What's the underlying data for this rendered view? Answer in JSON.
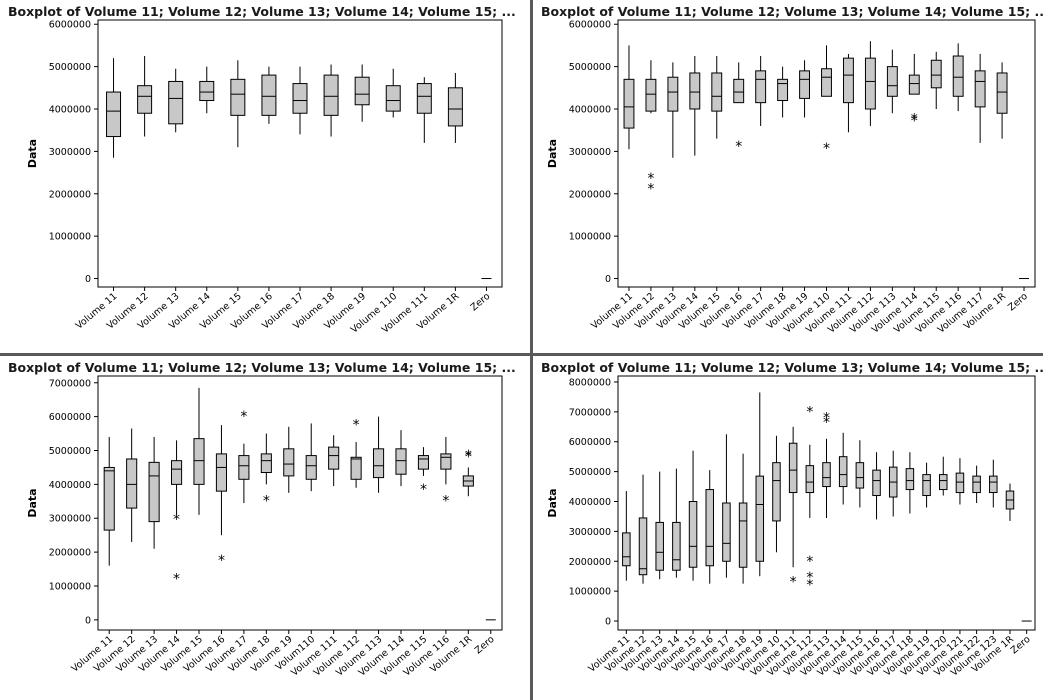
{
  "chart_data": [
    {
      "type": "boxplot",
      "title": "Boxplot of Volume 11; Volume 12; Volume 13; Volume 14; Volume 15; ...",
      "ylabel": "Data",
      "ylim": [
        -200000,
        6100000
      ],
      "yticks": [
        0,
        1000000,
        2000000,
        3000000,
        4000000,
        5000000,
        6000000
      ],
      "ytick_labels": [
        "0",
        "1000000",
        "2000000",
        "3000000",
        "4000000",
        "5000000",
        "6000000"
      ],
      "categories": [
        "Volume 11",
        "Volume 12",
        "Volume 13",
        "Volume 14",
        "Volume 15",
        "Volume 16",
        "Volume 17",
        "Volume 18",
        "Volume 19",
        "Volume 110",
        "Volume 111",
        "Volume 1R",
        "Zero"
      ],
      "boxes": [
        {
          "min": 2850000,
          "q1": 3350000,
          "median": 3950000,
          "q3": 4400000,
          "max": 5200000,
          "outliers": []
        },
        {
          "min": 3350000,
          "q1": 3900000,
          "median": 4300000,
          "q3": 4550000,
          "max": 5250000,
          "outliers": []
        },
        {
          "min": 3450000,
          "q1": 3650000,
          "median": 4250000,
          "q3": 4650000,
          "max": 4950000,
          "outliers": []
        },
        {
          "min": 3900000,
          "q1": 4200000,
          "median": 4400000,
          "q3": 4650000,
          "max": 5000000,
          "outliers": []
        },
        {
          "min": 3100000,
          "q1": 3850000,
          "median": 4350000,
          "q3": 4700000,
          "max": 5150000,
          "outliers": []
        },
        {
          "min": 3650000,
          "q1": 3850000,
          "median": 4300000,
          "q3": 4800000,
          "max": 5000000,
          "outliers": []
        },
        {
          "min": 3400000,
          "q1": 3900000,
          "median": 4200000,
          "q3": 4600000,
          "max": 5000000,
          "outliers": []
        },
        {
          "min": 3350000,
          "q1": 3850000,
          "median": 4300000,
          "q3": 4800000,
          "max": 5050000,
          "outliers": []
        },
        {
          "min": 3700000,
          "q1": 4100000,
          "median": 4350000,
          "q3": 4750000,
          "max": 5050000,
          "outliers": []
        },
        {
          "min": 3800000,
          "q1": 3950000,
          "median": 4200000,
          "q3": 4550000,
          "max": 4950000,
          "outliers": []
        },
        {
          "min": 3200000,
          "q1": 3900000,
          "median": 4300000,
          "q3": 4600000,
          "max": 4750000,
          "outliers": []
        },
        {
          "min": 3200000,
          "q1": 3600000,
          "median": 4000000,
          "q3": 4500000,
          "max": 4850000,
          "outliers": []
        },
        {
          "min": 0,
          "q1": 0,
          "median": 0,
          "q3": 0,
          "max": 0,
          "outliers": []
        }
      ]
    },
    {
      "type": "boxplot",
      "title": "Boxplot of Volume 11; Volume 12; Volume 13; Volume 14; Volume 15; ...",
      "ylabel": "Data",
      "ylim": [
        -200000,
        6100000
      ],
      "yticks": [
        0,
        1000000,
        2000000,
        3000000,
        4000000,
        5000000,
        6000000
      ],
      "ytick_labels": [
        "0",
        "1000000",
        "2000000",
        "3000000",
        "4000000",
        "5000000",
        "6000000"
      ],
      "categories": [
        "Volume 11",
        "Volume 12",
        "Volume 13",
        "Volume 14",
        "Volume 15",
        "Volume 16",
        "Volume 17",
        "Volume 18",
        "Volume 19",
        "Volume 110",
        "Volume 111",
        "Volume 112",
        "Volume 113",
        "Volume 114",
        "Volume 115",
        "Volume 116",
        "Volume 117",
        "Volume 1R",
        "Zero"
      ],
      "boxes": [
        {
          "min": 3050000,
          "q1": 3550000,
          "median": 4050000,
          "q3": 4700000,
          "max": 5500000,
          "outliers": []
        },
        {
          "min": 3900000,
          "q1": 3950000,
          "median": 4350000,
          "q3": 4700000,
          "max": 5150000,
          "outliers": [
            2400000,
            2150000
          ]
        },
        {
          "min": 2850000,
          "q1": 3950000,
          "median": 4400000,
          "q3": 4750000,
          "max": 5100000,
          "outliers": []
        },
        {
          "min": 2900000,
          "q1": 4000000,
          "median": 4400000,
          "q3": 4850000,
          "max": 5250000,
          "outliers": []
        },
        {
          "min": 3300000,
          "q1": 3950000,
          "median": 4300000,
          "q3": 4850000,
          "max": 5250000,
          "outliers": []
        },
        {
          "min": 4150000,
          "q1": 4150000,
          "median": 4400000,
          "q3": 4700000,
          "max": 5100000,
          "outliers": [
            3150000
          ]
        },
        {
          "min": 3600000,
          "q1": 4150000,
          "median": 4700000,
          "q3": 4900000,
          "max": 5250000,
          "outliers": []
        },
        {
          "min": 3800000,
          "q1": 4200000,
          "median": 4600000,
          "q3": 4700000,
          "max": 5000000,
          "outliers": []
        },
        {
          "min": 3800000,
          "q1": 4250000,
          "median": 4700000,
          "q3": 4900000,
          "max": 5150000,
          "outliers": []
        },
        {
          "min": 4300000,
          "q1": 4300000,
          "median": 4750000,
          "q3": 4950000,
          "max": 5500000,
          "outliers": [
            3100000
          ]
        },
        {
          "min": 3450000,
          "q1": 4150000,
          "median": 4800000,
          "q3": 5200000,
          "max": 5300000,
          "outliers": []
        },
        {
          "min": 3600000,
          "q1": 4000000,
          "median": 4650000,
          "q3": 5200000,
          "max": 5600000,
          "outliers": []
        },
        {
          "min": 3900000,
          "q1": 4300000,
          "median": 4550000,
          "q3": 5000000,
          "max": 5400000,
          "outliers": []
        },
        {
          "min": 4350000,
          "q1": 4350000,
          "median": 4600000,
          "q3": 4800000,
          "max": 5300000,
          "outliers": [
            3800000,
            3750000
          ]
        },
        {
          "min": 4000000,
          "q1": 4500000,
          "median": 4800000,
          "q3": 5150000,
          "max": 5350000,
          "outliers": []
        },
        {
          "min": 3950000,
          "q1": 4300000,
          "median": 4750000,
          "q3": 5250000,
          "max": 5550000,
          "outliers": []
        },
        {
          "min": 3200000,
          "q1": 4050000,
          "median": 4650000,
          "q3": 4900000,
          "max": 5300000,
          "outliers": []
        },
        {
          "min": 3300000,
          "q1": 3900000,
          "median": 4400000,
          "q3": 4850000,
          "max": 5100000,
          "outliers": []
        },
        {
          "min": 0,
          "q1": 0,
          "median": 0,
          "q3": 0,
          "max": 0,
          "outliers": []
        }
      ]
    },
    {
      "type": "boxplot",
      "title": "Boxplot of Volume 11; Volume 12; Volume 13; Volume 14; Volume 15; ...",
      "ylabel": "Data",
      "ylim": [
        -300000,
        7200000
      ],
      "yticks": [
        0,
        1000000,
        2000000,
        3000000,
        4000000,
        5000000,
        6000000,
        7000000
      ],
      "ytick_labels": [
        "0",
        "1000000",
        "2000000",
        "3000000",
        "4000000",
        "5000000",
        "6000000",
        "7000000"
      ],
      "categories": [
        "Volume 11",
        "Volume 12",
        "Volume 13",
        "Volume 14",
        "Volume 15",
        "Volume 16",
        "Volume 17",
        "Volume 18",
        "Volume 19",
        "Volum110",
        "Volume 111",
        "Volume 112",
        "Volume 113",
        "Volume 114",
        "Volume 115",
        "Volume 116",
        "Volume 1R",
        "Zero"
      ],
      "boxes": [
        {
          "min": 1600000,
          "q1": 2650000,
          "median": 4400000,
          "q3": 4500000,
          "max": 5400000,
          "outliers": []
        },
        {
          "min": 2300000,
          "q1": 3300000,
          "median": 4000000,
          "q3": 4750000,
          "max": 5650000,
          "outliers": []
        },
        {
          "min": 2100000,
          "q1": 2900000,
          "median": 4250000,
          "q3": 4650000,
          "max": 5400000,
          "outliers": []
        },
        {
          "min": 3100000,
          "q1": 4000000,
          "median": 4450000,
          "q3": 4700000,
          "max": 5300000,
          "outliers": [
            3000000,
            1250000
          ]
        },
        {
          "min": 3100000,
          "q1": 4000000,
          "median": 4700000,
          "q3": 5350000,
          "max": 6850000,
          "outliers": []
        },
        {
          "min": 2500000,
          "q1": 3800000,
          "median": 4500000,
          "q3": 4900000,
          "max": 5750000,
          "outliers": [
            1800000
          ]
        },
        {
          "min": 3450000,
          "q1": 4150000,
          "median": 4550000,
          "q3": 4850000,
          "max": 5200000,
          "outliers": [
            6050000
          ]
        },
        {
          "min": 4000000,
          "q1": 4350000,
          "median": 4700000,
          "q3": 4900000,
          "max": 5500000,
          "outliers": [
            3550000
          ]
        },
        {
          "min": 3750000,
          "q1": 4250000,
          "median": 4600000,
          "q3": 5050000,
          "max": 5700000,
          "outliers": []
        },
        {
          "min": 3800000,
          "q1": 4150000,
          "median": 4550000,
          "q3": 4850000,
          "max": 5800000,
          "outliers": []
        },
        {
          "min": 3950000,
          "q1": 4450000,
          "median": 4850000,
          "q3": 5100000,
          "max": 5450000,
          "outliers": []
        },
        {
          "min": 3900000,
          "q1": 4150000,
          "median": 4750000,
          "q3": 4800000,
          "max": 5250000,
          "outliers": [
            5800000
          ]
        },
        {
          "min": 3750000,
          "q1": 4200000,
          "median": 4550000,
          "q3": 5050000,
          "max": 6000000,
          "outliers": []
        },
        {
          "min": 3950000,
          "q1": 4300000,
          "median": 4700000,
          "q3": 5050000,
          "max": 5600000,
          "outliers": []
        },
        {
          "min": 4250000,
          "q1": 4450000,
          "median": 4750000,
          "q3": 4850000,
          "max": 5100000,
          "outliers": [
            3900000
          ]
        },
        {
          "min": 4000000,
          "q1": 4450000,
          "median": 4800000,
          "q3": 4900000,
          "max": 5400000,
          "outliers": [
            3550000
          ]
        },
        {
          "min": 3650000,
          "q1": 3950000,
          "median": 4100000,
          "q3": 4250000,
          "max": 4500000,
          "outliers": [
            4850000,
            4900000
          ]
        },
        {
          "min": 0,
          "q1": 0,
          "median": 0,
          "q3": 0,
          "max": 0,
          "outliers": []
        }
      ]
    },
    {
      "type": "boxplot",
      "title": "Boxplot of Volume 11; Volume 12; Volume 13; Volume 14; Volume 15; ...",
      "ylabel": "Data",
      "ylim": [
        -300000,
        8200000
      ],
      "yticks": [
        0,
        1000000,
        2000000,
        3000000,
        4000000,
        5000000,
        6000000,
        7000000,
        8000000
      ],
      "ytick_labels": [
        "0",
        "1000000",
        "2000000",
        "3000000",
        "4000000",
        "5000000",
        "6000000",
        "7000000",
        "8000000"
      ],
      "categories": [
        "Volume 11",
        "Volume 12",
        "Volume 13",
        "Volume 14",
        "Volume 15",
        "Volume 16",
        "Volume 17",
        "Volume 18",
        "Volume 19",
        "Volume 10",
        "Volume 111",
        "Volume 112",
        "Volume 113",
        "Volume 114",
        "Volume 115",
        "Volume 116",
        "Volume 117",
        "Volume 118",
        "Volume 119",
        "Volume 120",
        "Volume 121",
        "Volume 122",
        "Volume 123",
        "Volume 1R",
        "Zero"
      ],
      "boxes": [
        {
          "min": 1350000,
          "q1": 1850000,
          "median": 2150000,
          "q3": 2950000,
          "max": 4350000,
          "outliers": []
        },
        {
          "min": 1250000,
          "q1": 1550000,
          "median": 1750000,
          "q3": 3450000,
          "max": 4900000,
          "outliers": []
        },
        {
          "min": 1400000,
          "q1": 1700000,
          "median": 2300000,
          "q3": 3300000,
          "max": 5000000,
          "outliers": []
        },
        {
          "min": 1450000,
          "q1": 1700000,
          "median": 2050000,
          "q3": 3300000,
          "max": 5100000,
          "outliers": []
        },
        {
          "min": 1350000,
          "q1": 1800000,
          "median": 2500000,
          "q3": 4000000,
          "max": 5700000,
          "outliers": []
        },
        {
          "min": 1250000,
          "q1": 1850000,
          "median": 2500000,
          "q3": 4400000,
          "max": 5050000,
          "outliers": []
        },
        {
          "min": 1450000,
          "q1": 2000000,
          "median": 2600000,
          "q3": 3950000,
          "max": 6250000,
          "outliers": []
        },
        {
          "min": 1250000,
          "q1": 1800000,
          "median": 3350000,
          "q3": 3950000,
          "max": 5600000,
          "outliers": []
        },
        {
          "min": 1500000,
          "q1": 2000000,
          "median": 3900000,
          "q3": 4850000,
          "max": 7650000,
          "outliers": []
        },
        {
          "min": 2300000,
          "q1": 3350000,
          "median": 4700000,
          "q3": 5300000,
          "max": 6200000,
          "outliers": []
        },
        {
          "min": 1800000,
          "q1": 4300000,
          "median": 5050000,
          "q3": 5950000,
          "max": 6500000,
          "outliers": [
            1350000
          ]
        },
        {
          "min": 3450000,
          "q1": 4300000,
          "median": 4650000,
          "q3": 5200000,
          "max": 5900000,
          "outliers": [
            7050000,
            2050000,
            1500000,
            1250000
          ]
        },
        {
          "min": 3450000,
          "q1": 4500000,
          "median": 4800000,
          "q3": 5300000,
          "max": 6100000,
          "outliers": [
            6850000,
            6700000
          ]
        },
        {
          "min": 3900000,
          "q1": 4500000,
          "median": 4900000,
          "q3": 5500000,
          "max": 6300000,
          "outliers": []
        },
        {
          "min": 3800000,
          "q1": 4450000,
          "median": 4800000,
          "q3": 5300000,
          "max": 6050000,
          "outliers": []
        },
        {
          "min": 3400000,
          "q1": 4200000,
          "median": 4700000,
          "q3": 5050000,
          "max": 5650000,
          "outliers": []
        },
        {
          "min": 3500000,
          "q1": 4150000,
          "median": 4650000,
          "q3": 5150000,
          "max": 5700000,
          "outliers": []
        },
        {
          "min": 3600000,
          "q1": 4400000,
          "median": 4700000,
          "q3": 5100000,
          "max": 5650000,
          "outliers": []
        },
        {
          "min": 3800000,
          "q1": 4200000,
          "median": 4700000,
          "q3": 4900000,
          "max": 5300000,
          "outliers": []
        },
        {
          "min": 4200000,
          "q1": 4400000,
          "median": 4700000,
          "q3": 4900000,
          "max": 5500000,
          "outliers": []
        },
        {
          "min": 3900000,
          "q1": 4300000,
          "median": 4650000,
          "q3": 4950000,
          "max": 5450000,
          "outliers": []
        },
        {
          "min": 3950000,
          "q1": 4300000,
          "median": 4650000,
          "q3": 4850000,
          "max": 5200000,
          "outliers": []
        },
        {
          "min": 3800000,
          "q1": 4300000,
          "median": 4650000,
          "q3": 4850000,
          "max": 5400000,
          "outliers": []
        },
        {
          "min": 3350000,
          "q1": 3750000,
          "median": 4050000,
          "q3": 4350000,
          "max": 4600000,
          "outliers": []
        },
        {
          "min": 0,
          "q1": 0,
          "median": 0,
          "q3": 0,
          "max": 0,
          "outliers": []
        }
      ]
    }
  ]
}
